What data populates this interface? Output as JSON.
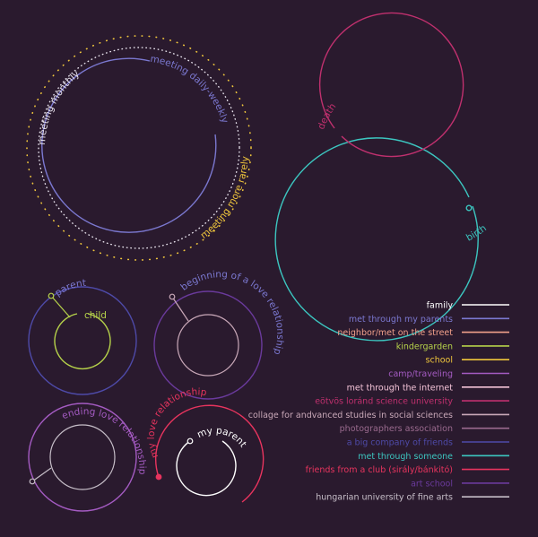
{
  "colors": {
    "background": "#2a1a2e",
    "family": "#ffffff",
    "met_through_parents": "#7b78d0",
    "neighbor": "#f2a08a",
    "kindergarden": "#b6d24a",
    "school": "#f0c63c",
    "camp": "#a45bc2",
    "met_through_internet": "#f5c4d8",
    "eotvos": "#c0306e",
    "collage": "#c9a8b8",
    "photographers": "#9a6a8e",
    "big_company": "#4e4aa8",
    "met_through_someone": "#3cc6c0",
    "friends_club": "#e8345e",
    "art_school": "#6a3a9c",
    "hungarian_university": "#c6bec8",
    "monthly": "#e9e4ee",
    "daily": "#7b78d0",
    "rarely": "#f0c63c"
  },
  "diagram_labels": {
    "meeting_monthly": "meeting monthly",
    "meeting_daily": "meeting daily-weekly",
    "meeting_rarely": "meeting more rarely",
    "death": "death",
    "birth": "birth",
    "parent": "parent",
    "child": "child",
    "beginning_love": "beginning of a love relationship",
    "ending_love": "ending love relationships",
    "my_love": "my love relationship",
    "my_parent": "my parent"
  },
  "legend": [
    {
      "label": "family",
      "color": "#ffffff"
    },
    {
      "label": "met through my parents",
      "color": "#7b78d0"
    },
    {
      "label": "neighbor/met on the street",
      "color": "#f2a08a"
    },
    {
      "label": "kindergarden",
      "color": "#b6d24a"
    },
    {
      "label": "school",
      "color": "#f0c63c"
    },
    {
      "label": "camp/traveling",
      "color": "#a45bc2"
    },
    {
      "label": "met through the internet",
      "color": "#f5c4d8"
    },
    {
      "label": "eötvös loránd science university",
      "color": "#c0306e"
    },
    {
      "label": "collage for andvanced studies in social sciences",
      "color": "#c9a8b8"
    },
    {
      "label": "photographers association",
      "color": "#9a6a8e"
    },
    {
      "label": "a big company of friends",
      "color": "#4e4aa8"
    },
    {
      "label": "met through someone",
      "color": "#3cc6c0"
    },
    {
      "label": "friends from a club (sirály/bánkitó)",
      "color": "#e8345e"
    },
    {
      "label": "art school",
      "color": "#6a3a9c"
    },
    {
      "label": "hungarian university of fine arts",
      "color": "#c6bec8"
    }
  ]
}
